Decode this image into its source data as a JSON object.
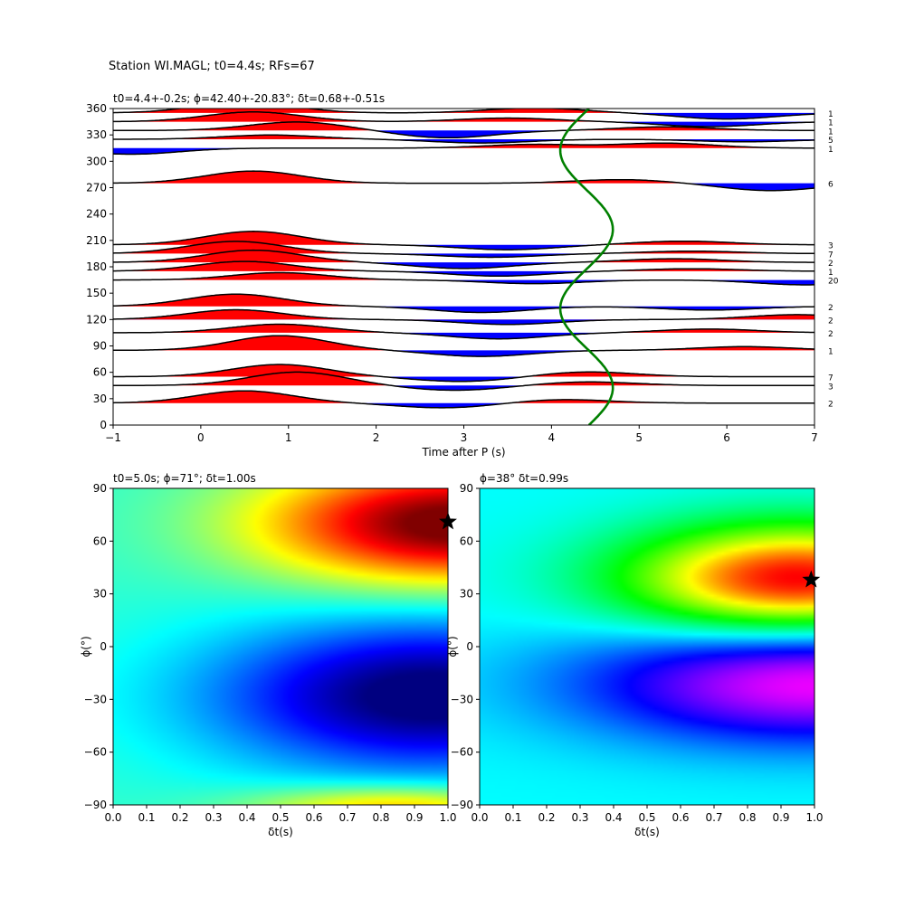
{
  "figure": {
    "title": "Station WI.MAGL; t0=4.4s; RFs=67"
  },
  "chart_data": [
    {
      "type": "line",
      "panel": "receiver-functions",
      "title": "t0=4.4+-0.2s; ϕ=42.40+-20.83°; δt=0.68+-0.51s",
      "xlabel": "Time after P (s)",
      "ylabel": "",
      "xlim": [
        -1,
        7
      ],
      "ylim": [
        0,
        360
      ],
      "xticks": [
        "−1",
        "0",
        "1",
        "2",
        "3",
        "4",
        "5",
        "6",
        "7"
      ],
      "yticks": [
        "0",
        "30",
        "60",
        "90",
        "120",
        "150",
        "180",
        "210",
        "240",
        "270",
        "300",
        "330",
        "360"
      ],
      "fill_positive": "#ff0000",
      "fill_negative": "#0000ff",
      "trace_color": "#000000",
      "curve_color": "#008000",
      "traces": [
        {
          "baz": 355,
          "count": "1",
          "a": [
            0.9,
            0.4,
            -0.5
          ],
          "t": [
            0.5,
            3.8,
            6.0
          ]
        },
        {
          "baz": 345,
          "count": "1",
          "a": [
            0.8,
            0.3,
            -0.4
          ],
          "t": [
            0.6,
            3.5,
            5.8
          ]
        },
        {
          "baz": 335,
          "count": "1",
          "a": [
            0.7,
            -0.6,
            0.3
          ],
          "t": [
            1.1,
            2.8,
            5.3
          ]
        },
        {
          "baz": 325,
          "count": "5",
          "a": [
            0.35,
            -0.3,
            -0.2
          ],
          "t": [
            0.8,
            3.2,
            6.2
          ]
        },
        {
          "baz": 315,
          "count": "1",
          "a": [
            -0.5,
            0.3,
            0.4
          ],
          "t": [
            -0.8,
            3.8,
            5.3
          ]
        },
        {
          "baz": 275,
          "count": "6",
          "a": [
            1.0,
            0.3,
            -0.6
          ],
          "t": [
            0.6,
            4.8,
            6.5
          ]
        },
        {
          "baz": 205,
          "count": "3",
          "a": [
            1.1,
            -0.4,
            0.3
          ],
          "t": [
            0.6,
            3.5,
            5.5
          ]
        },
        {
          "baz": 195,
          "count": "7",
          "a": [
            1.0,
            -0.3,
            0.2
          ],
          "t": [
            0.4,
            3.3,
            5.6
          ]
        },
        {
          "baz": 185,
          "count": "2",
          "a": [
            1.0,
            -0.5,
            0.3
          ],
          "t": [
            0.6,
            3.0,
            5.4
          ]
        },
        {
          "baz": 175,
          "count": "1",
          "a": [
            0.8,
            -0.4,
            0.2
          ],
          "t": [
            0.5,
            3.4,
            5.6
          ]
        },
        {
          "baz": 165,
          "count": "20",
          "a": [
            0.6,
            -0.3,
            -0.4
          ],
          "t": [
            0.9,
            3.8,
            6.9
          ]
        },
        {
          "baz": 135,
          "count": "2",
          "a": [
            1.0,
            -0.5,
            -0.3
          ],
          "t": [
            0.4,
            3.2,
            5.8
          ]
        },
        {
          "baz": 120,
          "count": "2",
          "a": [
            0.8,
            -0.4,
            0.4
          ],
          "t": [
            0.4,
            3.5,
            6.8
          ]
        },
        {
          "baz": 105,
          "count": "2",
          "a": [
            0.7,
            -0.5,
            0.3
          ],
          "t": [
            0.9,
            3.4,
            5.8
          ]
        },
        {
          "baz": 85,
          "count": "1",
          "a": [
            1.2,
            -0.5,
            0.3
          ],
          "t": [
            0.9,
            3.2,
            6.2
          ]
        },
        {
          "baz": 55,
          "count": "7",
          "a": [
            1.0,
            -0.4,
            0.4
          ],
          "t": [
            0.9,
            3.0,
            4.4
          ]
        },
        {
          "baz": 45,
          "count": "3",
          "a": [
            1.1,
            -0.4,
            0.3
          ],
          "t": [
            1.1,
            2.9,
            4.4
          ]
        },
        {
          "baz": 25,
          "count": "2",
          "a": [
            1.0,
            -0.4,
            0.3
          ],
          "t": [
            0.5,
            2.8,
            4.1
          ]
        }
      ],
      "moveout_curve": {
        "mean": 4.4,
        "amplitude": 0.3,
        "phase_deg": 42.4
      }
    },
    {
      "type": "heatmap",
      "panel": "grid-search-left",
      "title": "t0=5.0s; ϕ=71°; δt=1.00s",
      "xlabel": "δt(s)",
      "ylabel": "ϕ(°)",
      "xlim": [
        0.0,
        1.0
      ],
      "ylim": [
        -90,
        90
      ],
      "xticks": [
        "0.0",
        "0.1",
        "0.2",
        "0.3",
        "0.4",
        "0.5",
        "0.6",
        "0.7",
        "0.8",
        "0.9",
        "1.0"
      ],
      "yticks": [
        "−90",
        "−60",
        "−30",
        "0",
        "30",
        "60",
        "90"
      ],
      "colormap": "jet",
      "best": {
        "dt": 1.0,
        "phi": 71
      }
    },
    {
      "type": "heatmap",
      "panel": "grid-search-right",
      "title": "ϕ=38° δt=0.99s",
      "xlabel": "δt(s)",
      "ylabel": "ϕ(°)",
      "xlim": [
        0.0,
        1.0
      ],
      "ylim": [
        -90,
        90
      ],
      "xticks": [
        "0.0",
        "0.1",
        "0.2",
        "0.3",
        "0.4",
        "0.5",
        "0.6",
        "0.7",
        "0.8",
        "0.9",
        "1.0"
      ],
      "yticks": [
        "−90",
        "−60",
        "−30",
        "0",
        "30",
        "60",
        "90"
      ],
      "colormap": "hsv",
      "best": {
        "dt": 0.99,
        "phi": 38
      }
    }
  ]
}
